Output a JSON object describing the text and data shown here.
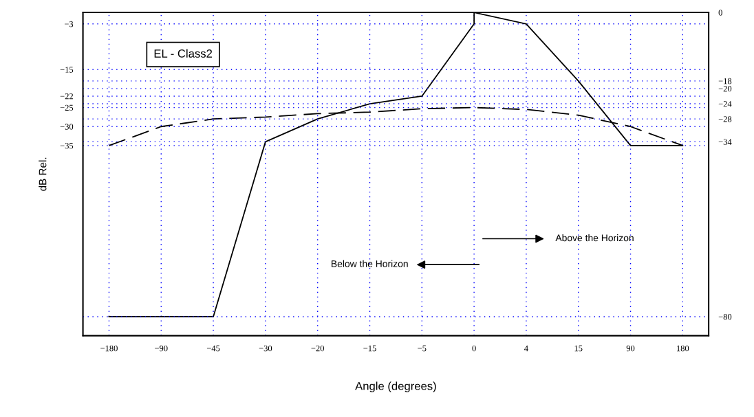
{
  "chart_data": {
    "type": "line",
    "xlabel": "Angle (degrees)",
    "ylabel": "dB Rel.",
    "categories": [
      "−180",
      "−90",
      "−45",
      "−30",
      "−20",
      "−15",
      "−5",
      "0",
      "4",
      "15",
      "90",
      "180"
    ],
    "ylim": [
      -85,
      0
    ],
    "yticks": [
      -3,
      -15,
      -22,
      -25,
      -30,
      -35
    ],
    "y2lim": [
      -85,
      0
    ],
    "y2ticks": [
      0,
      -18,
      -20,
      -24,
      -28,
      -34,
      -80
    ],
    "grid": true,
    "series": [
      {
        "color": "#000000",
        "line_style": "solid",
        "x": [
          "−180",
          "−90",
          "−45",
          "−30",
          "−20",
          "−15",
          "−5",
          "0",
          "0",
          "4",
          "15",
          "90",
          "180"
        ],
        "values": [
          -80,
          -80,
          -80,
          -34,
          -28,
          -24,
          -22,
          -3,
          0,
          -3,
          -18,
          -35,
          -35
        ]
      },
      {
        "color": "#000000",
        "line_style": "dashed",
        "values": [
          -35,
          -30,
          -28,
          -27.5,
          -26.6,
          -26.2,
          -25.3,
          -25,
          -25.5,
          -27,
          -30,
          -35
        ]
      }
    ],
    "annotations": [
      "EL - Class2",
      "Below the Horizon",
      "Above the Horizon"
    ]
  }
}
